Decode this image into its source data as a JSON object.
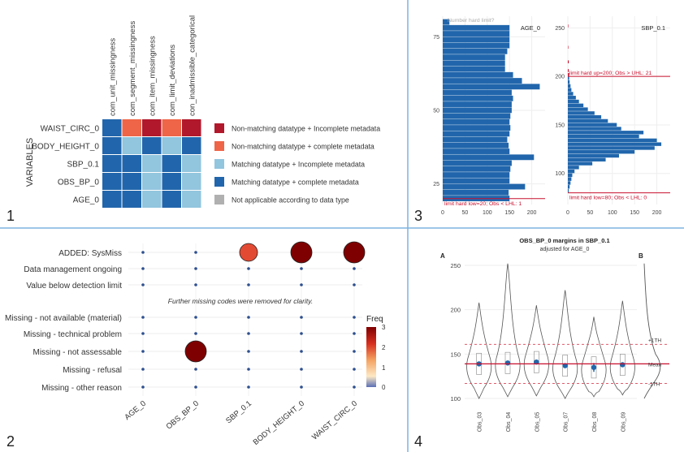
{
  "panel_numbers": [
    "1",
    "2",
    "3",
    "4"
  ],
  "colors": {
    "dark_red": "#b2182b",
    "orange": "#ef6548",
    "light_blue": "#92c5de",
    "mid_blue": "#2166ac",
    "grey": "#b0b0b0",
    "bar_blue": "#2166ac",
    "limit_red": "#c8102e",
    "divider": "#7fb3e0"
  },
  "chart_data": [
    {
      "type": "heatmap",
      "ylabel": "VARIABLES",
      "columns": [
        "com_unit_missingness",
        "com_segment_missingness",
        "com_item_missingness",
        "com_limit_deviations",
        "con_inadmissible_categorical"
      ],
      "rows": [
        "WAIST_CIRC_0",
        "BODY_HEIGHT_0",
        "SBP_0.1",
        "OBS_BP_0",
        "AGE_0"
      ],
      "cells": [
        [
          3,
          1,
          0,
          1,
          0
        ],
        [
          3,
          2,
          3,
          2,
          3
        ],
        [
          3,
          3,
          2,
          3,
          2
        ],
        [
          3,
          3,
          2,
          3,
          2
        ],
        [
          3,
          3,
          2,
          3,
          2
        ]
      ],
      "legend": [
        {
          "label": "Non-matching datatype + Incomplete metadata",
          "color": "#b2182b"
        },
        {
          "label": "Non-matching datatype + complete metadata",
          "color": "#ef6548"
        },
        {
          "label": "Matching datatype + Incomplete metadata",
          "color": "#92c5de"
        },
        {
          "label": "Matching datatype + complete metadata",
          "color": "#2166ac"
        },
        {
          "label": "Not applicable according to data type",
          "color": "#b0b0b0"
        }
      ]
    },
    {
      "type": "scatter",
      "x_categories": [
        "AGE_0",
        "OBS_BP_0",
        "SBP_0.1",
        "BODY_HEIGHT_0",
        "WAIST_CIRC_0"
      ],
      "y_categories": [
        "ADDED: SysMiss",
        "Data management ongoing",
        "Value below detection limit",
        "Missing - not available (material)",
        "Missing - technical problem",
        "Missing - not assessable",
        "Missing - refusal",
        "Missing - other reason"
      ],
      "annotation": "Further missing codes were removed for clarity.",
      "legend_title": "Freq",
      "legend_ticks": [
        "3",
        "2",
        "1",
        "0"
      ],
      "points": [
        {
          "x": "SBP_0.1",
          "y": "ADDED: SysMiss",
          "freq": 2
        },
        {
          "x": "BODY_HEIGHT_0",
          "y": "ADDED: SysMiss",
          "freq": 3
        },
        {
          "x": "WAIST_CIRC_0",
          "y": "ADDED: SysMiss",
          "freq": 3
        },
        {
          "x": "OBS_BP_0",
          "y": "Missing - not assessable",
          "freq": 3
        }
      ]
    },
    {
      "type": "bar",
      "title": "AGE_0",
      "orientation": "horizontal",
      "note": "Number hard limit?",
      "y_ticks": [
        "75",
        "50",
        "25"
      ],
      "x_ticks": [
        "0",
        "50",
        "100",
        "150",
        "200"
      ],
      "ylim": [
        18,
        82
      ],
      "xlim": [
        0,
        230
      ],
      "bins": [
        {
          "y": 20,
          "count": 150
        },
        {
          "y": 22,
          "count": 148
        },
        {
          "y": 24,
          "count": 185
        },
        {
          "y": 26,
          "count": 150
        },
        {
          "y": 28,
          "count": 150
        },
        {
          "y": 30,
          "count": 152
        },
        {
          "y": 32,
          "count": 155
        },
        {
          "y": 34,
          "count": 205
        },
        {
          "y": 36,
          "count": 150
        },
        {
          "y": 38,
          "count": 148
        },
        {
          "y": 40,
          "count": 145
        },
        {
          "y": 42,
          "count": 150
        },
        {
          "y": 44,
          "count": 152
        },
        {
          "y": 46,
          "count": 150
        },
        {
          "y": 48,
          "count": 152
        },
        {
          "y": 50,
          "count": 155
        },
        {
          "y": 52,
          "count": 155
        },
        {
          "y": 54,
          "count": 158
        },
        {
          "y": 56,
          "count": 155
        },
        {
          "y": 58,
          "count": 218
        },
        {
          "y": 60,
          "count": 178
        },
        {
          "y": 62,
          "count": 158
        },
        {
          "y": 64,
          "count": 140
        },
        {
          "y": 66,
          "count": 140
        },
        {
          "y": 68,
          "count": 140
        },
        {
          "y": 70,
          "count": 145
        },
        {
          "y": 72,
          "count": 150
        },
        {
          "y": 74,
          "count": 150
        },
        {
          "y": 76,
          "count": 150
        },
        {
          "y": 78,
          "count": 150
        },
        {
          "y": 80,
          "count": 15
        }
      ],
      "limit_label": "limit hard low=20; Obs < LHL: 1"
    },
    {
      "type": "bar",
      "title": "SBP_0.1",
      "orientation": "horizontal",
      "y_ticks": [
        "250",
        "200",
        "150",
        "100"
      ],
      "x_ticks": [
        "0",
        "50",
        "100",
        "150",
        "200"
      ],
      "ylim": [
        68,
        262
      ],
      "xlim": [
        0,
        230
      ],
      "bins": [
        {
          "y": 82,
          "count": 2
        },
        {
          "y": 86,
          "count": 4
        },
        {
          "y": 90,
          "count": 6
        },
        {
          "y": 94,
          "count": 8
        },
        {
          "y": 98,
          "count": 10
        },
        {
          "y": 102,
          "count": 15
        },
        {
          "y": 106,
          "count": 25
        },
        {
          "y": 110,
          "count": 55
        },
        {
          "y": 114,
          "count": 85
        },
        {
          "y": 118,
          "count": 115
        },
        {
          "y": 122,
          "count": 150
        },
        {
          "y": 126,
          "count": 195
        },
        {
          "y": 130,
          "count": 210
        },
        {
          "y": 134,
          "count": 200
        },
        {
          "y": 138,
          "count": 160
        },
        {
          "y": 142,
          "count": 170
        },
        {
          "y": 146,
          "count": 120
        },
        {
          "y": 150,
          "count": 110
        },
        {
          "y": 154,
          "count": 90
        },
        {
          "y": 158,
          "count": 75
        },
        {
          "y": 162,
          "count": 60
        },
        {
          "y": 166,
          "count": 45
        },
        {
          "y": 170,
          "count": 35
        },
        {
          "y": 174,
          "count": 25
        },
        {
          "y": 178,
          "count": 18
        },
        {
          "y": 182,
          "count": 12
        },
        {
          "y": 186,
          "count": 8
        },
        {
          "y": 190,
          "count": 6
        },
        {
          "y": 194,
          "count": 4
        },
        {
          "y": 198,
          "count": 3
        }
      ],
      "outlier_bins": [
        {
          "y": 202,
          "count": 3
        },
        {
          "y": 206,
          "count": 2
        },
        {
          "y": 215,
          "count": 2
        },
        {
          "y": 230,
          "count": 1
        },
        {
          "y": 252,
          "count": 1
        }
      ],
      "upper_label": "limit hard up=200; Obs > UHL: 21",
      "lower_label": "limit hard low=80; Obs < LHL: 0"
    },
    {
      "type": "scatter",
      "title": "OBS_BP_0 margins in SBP_0.1",
      "subtitle": "adjusted for AGE_0",
      "label_a": "A",
      "label_b": "B",
      "categories": [
        "Obs_03",
        "Obs_04",
        "Obs_05",
        "Obs_07",
        "Obs_08",
        "Obs_09"
      ],
      "means": [
        139,
        140,
        141,
        137,
        135,
        138
      ],
      "y_ticks": [
        "250",
        "200",
        "150",
        "100"
      ],
      "ylim": [
        90,
        260
      ],
      "overall_mean": 139,
      "plus_line": 161,
      "minus_line": 117,
      "plus_label": "+1TH",
      "mean_label": "Mean",
      "minus_label": "-1TH"
    }
  ]
}
